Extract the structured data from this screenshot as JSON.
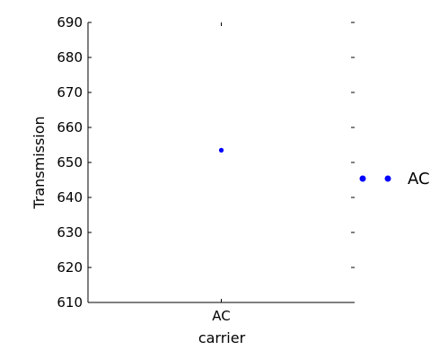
{
  "chart_data": {
    "type": "scatter",
    "title": "",
    "xlabel": "carrier",
    "ylabel": "Transmission",
    "categories": [
      "AC"
    ],
    "ylim": [
      610,
      690
    ],
    "yticks": [
      610,
      620,
      630,
      640,
      650,
      660,
      670,
      680,
      690
    ],
    "series": [
      {
        "name": "AC",
        "values": [
          653.5
        ]
      }
    ],
    "legend": {
      "position": "right",
      "entries": [
        "AC"
      ]
    },
    "grid": false,
    "marker_color": "#0000ff"
  }
}
